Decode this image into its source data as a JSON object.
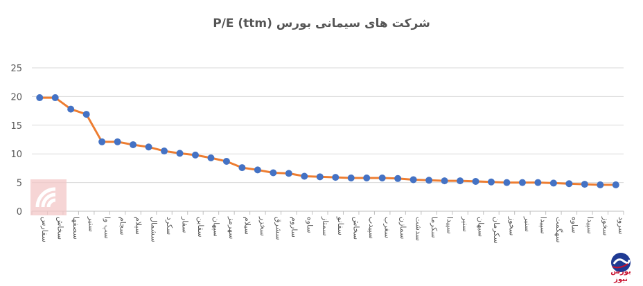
{
  "chart_data": {
    "type": "line",
    "title": "P/E (ttm) شرکت های سیمانی بورس",
    "ylim": [
      0,
      25
    ],
    "yticks": [
      0,
      5,
      10,
      15,
      20,
      25
    ],
    "grid": true,
    "legend": "none",
    "colors": {
      "line": "#ED7D31",
      "marker": "#4472C4",
      "grid": "#D9D9D9"
    },
    "categories": [
      "سفارس",
      "سخاش",
      "سصفها",
      "سنیر",
      "سپ وا",
      "سجام",
      "سیلام",
      "سشمال",
      "سکرد",
      "سفار",
      "سقاین",
      "سپهان",
      "سهرمز",
      "سیلام",
      "سخزر",
      "سشرق",
      "ساروم",
      "ساوه",
      "سمتاز",
      "سفانو",
      "سخاش",
      "سپیدب",
      "سغرب",
      "سمازن",
      "سدشت",
      "سکرما",
      "سپیدا",
      "سنیر",
      "سبهان",
      "سکرمان",
      "سخوز",
      "سنیر",
      "سپیدا",
      "سهگمت",
      "ساوه",
      "سپیدا",
      "سخوز",
      "سرود"
    ],
    "values": [
      19.8,
      19.8,
      17.8,
      16.9,
      12.1,
      12.1,
      11.6,
      11.2,
      10.5,
      10.1,
      9.8,
      9.3,
      8.7,
      7.6,
      7.2,
      6.7,
      6.6,
      6.1,
      6.0,
      5.9,
      5.8,
      5.8,
      5.8,
      5.7,
      5.5,
      5.4,
      5.3,
      5.3,
      5.2,
      5.1,
      5.0,
      5.0,
      5.0,
      4.9,
      4.8,
      4.7,
      4.6,
      4.6
    ]
  },
  "brand": {
    "name": "بورس نیوز"
  }
}
